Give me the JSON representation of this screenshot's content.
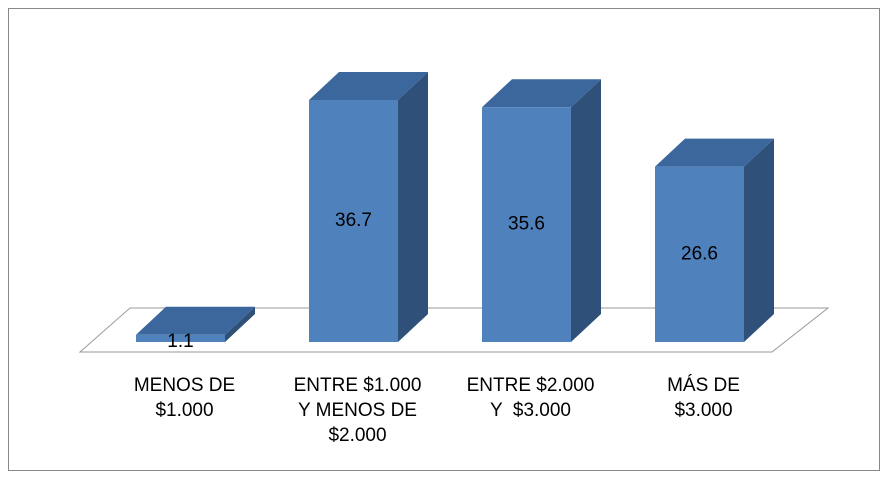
{
  "chart_data": {
    "type": "bar3d",
    "categories": [
      "MENOS DE\n$1.000",
      "ENTRE $1.000\nY MENOS DE\n$2.000",
      "ENTRE $2.000\nY  $3.000",
      "MÁS DE\n$3.000"
    ],
    "values": [
      1.1,
      36.7,
      35.6,
      26.6
    ],
    "color": "#4f81bd"
  }
}
